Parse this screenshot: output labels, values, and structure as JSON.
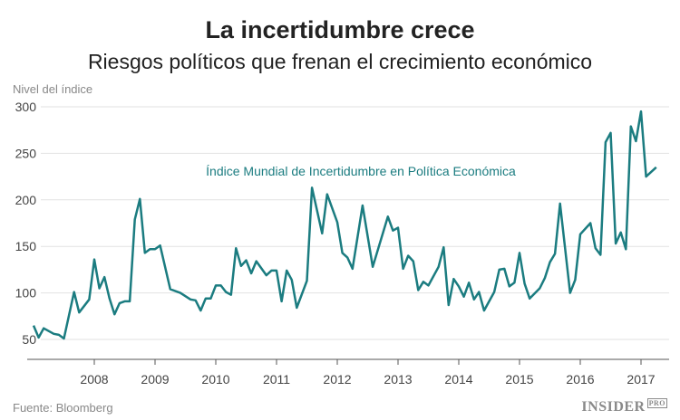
{
  "chart_data": {
    "type": "line",
    "title": "La incertidumbre crece",
    "subtitle": "Riesgos políticos que frenan el crecimiento económico",
    "ylabel": "Nivel del índice",
    "xlabel": "",
    "ylim": [
      40,
      300
    ],
    "yticks": [
      50,
      100,
      150,
      200,
      250,
      300
    ],
    "xticks": [
      "2008",
      "2009",
      "2010",
      "2011",
      "2012",
      "2013",
      "2014",
      "2015",
      "2016",
      "2017"
    ],
    "grid": true,
    "annotation": "Índice Mundial de Incertidumbre en Política Económica",
    "color": "#1b7c80",
    "points": [
      [
        "2007-01",
        65
      ],
      [
        "2007-02",
        52
      ],
      [
        "2007-03",
        62
      ],
      [
        "2007-05",
        56
      ],
      [
        "2007-06",
        55
      ],
      [
        "2007-07",
        51
      ],
      [
        "2007-09",
        101
      ],
      [
        "2007-10",
        79
      ],
      [
        "2007-12",
        93
      ],
      [
        "2008-01",
        136
      ],
      [
        "2008-02",
        105
      ],
      [
        "2008-03",
        117
      ],
      [
        "2008-04",
        94
      ],
      [
        "2008-05",
        77
      ],
      [
        "2008-06",
        89
      ],
      [
        "2008-07",
        91
      ],
      [
        "2008-08",
        91
      ],
      [
        "2008-09",
        179
      ],
      [
        "2008-10",
        201
      ],
      [
        "2008-11",
        143
      ],
      [
        "2008-12",
        147
      ],
      [
        "2009-01",
        147
      ],
      [
        "2009-02",
        151
      ],
      [
        "2009-04",
        104
      ],
      [
        "2009-06",
        100
      ],
      [
        "2009-08",
        93
      ],
      [
        "2009-09",
        92
      ],
      [
        "2009-10",
        81
      ],
      [
        "2009-11",
        94
      ],
      [
        "2009-12",
        94
      ],
      [
        "2010-01",
        108
      ],
      [
        "2010-02",
        108
      ],
      [
        "2010-03",
        101
      ],
      [
        "2010-04",
        98
      ],
      [
        "2010-05",
        148
      ],
      [
        "2010-06",
        129
      ],
      [
        "2010-07",
        135
      ],
      [
        "2010-08",
        121
      ],
      [
        "2010-09",
        134
      ],
      [
        "2010-11",
        119
      ],
      [
        "2010-12",
        124
      ],
      [
        "2011-01",
        124
      ],
      [
        "2011-02",
        91
      ],
      [
        "2011-03",
        124
      ],
      [
        "2011-04",
        114
      ],
      [
        "2011-05",
        84
      ],
      [
        "2011-07",
        113
      ],
      [
        "2011-08",
        213
      ],
      [
        "2011-10",
        164
      ],
      [
        "2011-11",
        206
      ],
      [
        "2012-01",
        176
      ],
      [
        "2012-02",
        143
      ],
      [
        "2012-03",
        138
      ],
      [
        "2012-04",
        126
      ],
      [
        "2012-06",
        194
      ],
      [
        "2012-08",
        128
      ],
      [
        "2012-11",
        182
      ],
      [
        "2012-12",
        167
      ],
      [
        "2013-01",
        170
      ],
      [
        "2013-02",
        126
      ],
      [
        "2013-03",
        140
      ],
      [
        "2013-04",
        134
      ],
      [
        "2013-05",
        103
      ],
      [
        "2013-06",
        112
      ],
      [
        "2013-07",
        108
      ],
      [
        "2013-09",
        128
      ],
      [
        "2013-10",
        149
      ],
      [
        "2013-11",
        87
      ],
      [
        "2013-12",
        115
      ],
      [
        "2014-01",
        107
      ],
      [
        "2014-02",
        96
      ],
      [
        "2014-03",
        111
      ],
      [
        "2014-04",
        93
      ],
      [
        "2014-05",
        101
      ],
      [
        "2014-06",
        81
      ],
      [
        "2014-08",
        101
      ],
      [
        "2014-09",
        125
      ],
      [
        "2014-10",
        126
      ],
      [
        "2014-11",
        107
      ],
      [
        "2014-12",
        111
      ],
      [
        "2015-01",
        143
      ],
      [
        "2015-02",
        110
      ],
      [
        "2015-03",
        94
      ],
      [
        "2015-05",
        105
      ],
      [
        "2015-06",
        116
      ],
      [
        "2015-07",
        133
      ],
      [
        "2015-08",
        142
      ],
      [
        "2015-09",
        196
      ],
      [
        "2015-11",
        100
      ],
      [
        "2015-12",
        114
      ],
      [
        "2016-01",
        163
      ],
      [
        "2016-03",
        175
      ],
      [
        "2016-04",
        148
      ],
      [
        "2016-05",
        141
      ],
      [
        "2016-06",
        262
      ],
      [
        "2016-07",
        272
      ],
      [
        "2016-08",
        153
      ],
      [
        "2016-09",
        165
      ],
      [
        "2016-10",
        147
      ],
      [
        "2016-11",
        279
      ],
      [
        "2016-12",
        263
      ],
      [
        "2017-01",
        295
      ],
      [
        "2017-02",
        225
      ],
      [
        "2017-04",
        235
      ]
    ]
  },
  "footer": {
    "source": "Fuente: Bloomberg",
    "logo": "INSIDER",
    "logo_badge": "PRO"
  }
}
